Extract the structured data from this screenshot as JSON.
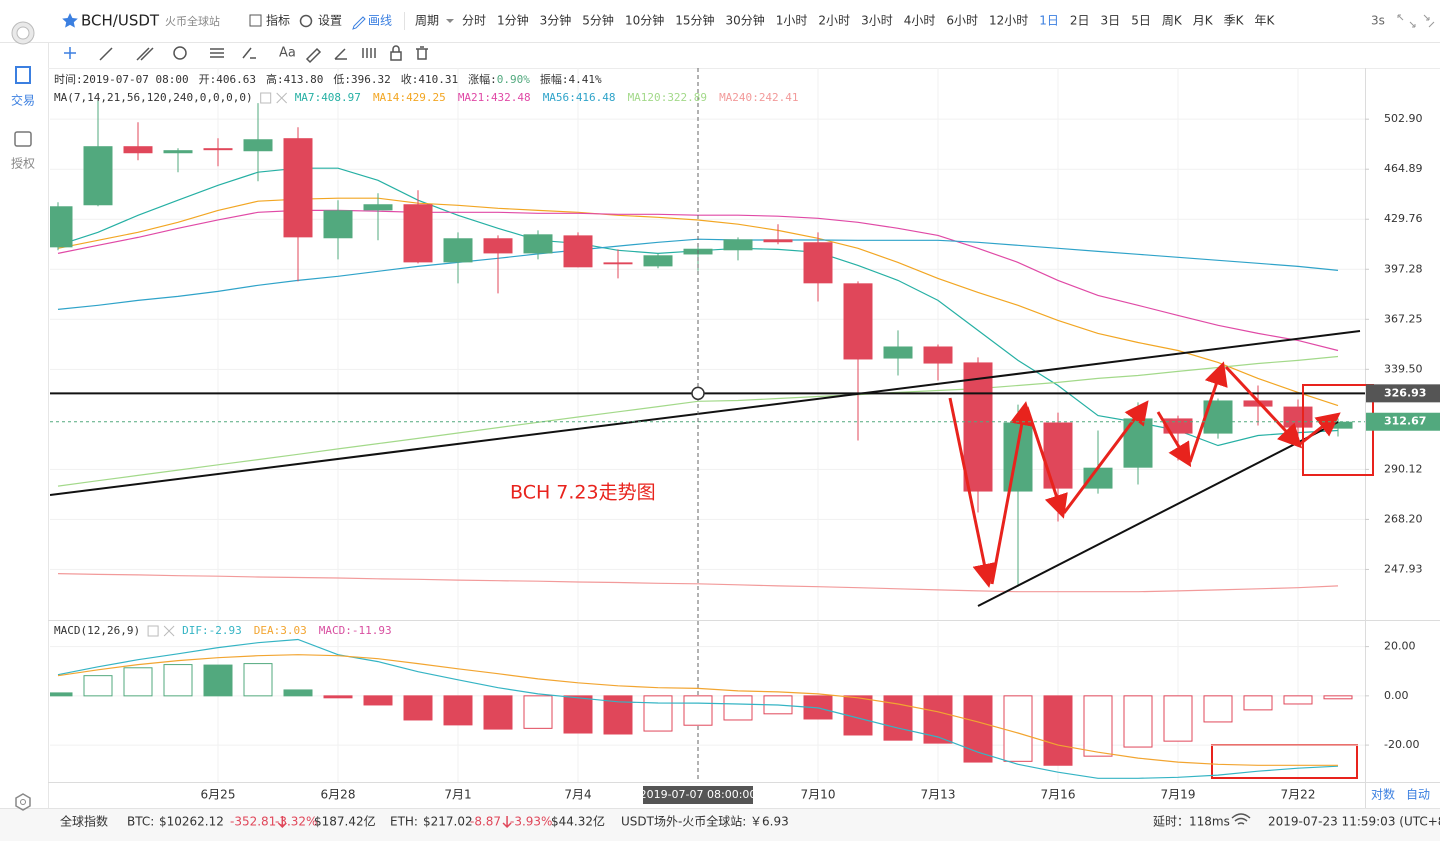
{
  "toolbar": {
    "symbol": "BCH/USDT",
    "exchange": "火币全球站",
    "buttons": [
      "指标",
      "设置",
      "画线"
    ],
    "period_label": "周期",
    "periods": [
      "分时",
      "1分钟",
      "3分钟",
      "5分钟",
      "10分钟",
      "15分钟",
      "30分钟",
      "1小时",
      "2小时",
      "3小时",
      "4小时",
      "6小时",
      "12小时",
      "1日",
      "2日",
      "3日",
      "5日",
      "周K",
      "月K",
      "季K",
      "年K"
    ],
    "active_period": "1日",
    "refresh": "3s",
    "text_tool": "Aa"
  },
  "sidebar": [
    "交易",
    "授权"
  ],
  "scale_buttons": [
    "对数",
    "自动"
  ],
  "status_bar": [
    {
      "text": "全球指数"
    },
    {
      "text": "BTC:"
    },
    {
      "text": "$10262.12"
    },
    {
      "text": "-352.81",
      "color": "#e0475a"
    },
    {
      "text": "-3.32%",
      "color": "#e0475a"
    },
    {
      "text": "$187.42亿"
    },
    {
      "text": "ETH:"
    },
    {
      "text": "$217.02"
    },
    {
      "text": "-8.87",
      "color": "#e0475a"
    },
    {
      "text": "-3.93%",
      "color": "#e0475a"
    },
    {
      "text": "$44.32亿"
    },
    {
      "text": "USDT场外-火币全球站:"
    },
    {
      "text": "￥6.93"
    },
    {
      "text": "延时：118ms"
    },
    {
      "text": "2019-07-23 11:59:03 (UTC+8)"
    }
  ],
  "chart_data": [
    {
      "type": "candlestick",
      "categories": [
        null,
        null,
        null,
        null,
        "6月25",
        null,
        null,
        "6月28",
        null,
        null,
        "7月1",
        null,
        null,
        "7月4",
        null,
        null,
        null,
        null,
        null,
        "7月10",
        null,
        null,
        "7月13",
        null,
        null,
        "7月16",
        null,
        null,
        "7月19",
        null,
        null,
        "7月22",
        null
      ],
      "open": [
        411.2,
        439.3,
        482.0,
        476.7,
        480.5,
        478.2,
        488.1,
        417.1,
        435.8,
        440.0,
        401.6,
        417.1,
        407.3,
        419.0,
        401.6,
        399.1,
        406.63,
        409.3,
        416.4,
        414.5,
        388.6,
        345.3,
        351.9,
        343.2,
        280.2,
        312.3,
        281.5,
        290.9,
        314.3,
        306.9,
        323.3,
        320.2,
        309.3
      ],
      "high": [
        441.4,
        518.1,
        500.5,
        480.5,
        488.1,
        515.7,
        496.6,
        442.8,
        447.7,
        449.8,
        421.0,
        419.0,
        422.3,
        421.0,
        409.9,
        407.3,
        413.8,
        417.7,
        426.4,
        421.0,
        389.8,
        360.9,
        353.0,
        345.9,
        321.2,
        317.2,
        308.4,
        322.3,
        315.7,
        324.3,
        331.0,
        323.8,
        314.3
      ],
      "low": [
        409.3,
        438.6,
        471.5,
        462.7,
        467.1,
        456.2,
        389.8,
        403.5,
        415.8,
        401.0,
        388.6,
        382.5,
        403.5,
        398.5,
        391.6,
        397.9,
        396.32,
        402.9,
        413.2,
        377.7,
        303.6,
        336.2,
        333.6,
        271.1,
        241.3,
        267.3,
        279.3,
        283.3,
        294.2,
        304.5,
        310.8,
        300.7,
        305.5
      ],
      "close": [
        438.6,
        482.0,
        476.7,
        479.0,
        479.0,
        487.3,
        417.7,
        435.8,
        440.0,
        401.6,
        417.1,
        407.3,
        419.7,
        398.5,
        400.4,
        406.1,
        410.31,
        416.4,
        414.5,
        388.6,
        344.8,
        351.9,
        342.6,
        280.2,
        312.3,
        281.5,
        290.9,
        314.3,
        306.9,
        323.3,
        320.2,
        309.8,
        312.67
      ],
      "up_color": "#52a97e",
      "down_color": "#e0475a",
      "log_scale": true,
      "grid": true,
      "ylim": [
        229,
        545
      ],
      "yticks": [
        {
          "value": 502.9,
          "label": "502.90"
        },
        464.89,
        429.76,
        397.28,
        367.25,
        {
          "value": 339.5,
          "label": "339.50"
        },
        290.12,
        {
          "value": 268.2,
          "label": "268.20"
        },
        247.93
      ],
      "indicator": "MA(7,14,21,56,120,240,0,0,0,0)",
      "separator": ":",
      "series": [
        {
          "name": "MA7",
          "color": "#26b0a4",
          "values": [
            412.5,
            421.0,
            432.4,
            442.8,
            453.3,
            462.7,
            465.6,
            465.6,
            456.9,
            442.8,
            432.4,
            423.7,
            415.8,
            413.8,
            409.3,
            407.3,
            408.97,
            410.6,
            409.9,
            408.0,
            399.7,
            390.4,
            378.3,
            360.9,
            344.3,
            331.0,
            315.7,
            312.3,
            308.4,
            301.2,
            306.0,
            307.4,
            308.4
          ]
        },
        {
          "name": "MA14",
          "color": "#f2a623",
          "values": [
            410.6,
            415.8,
            421.0,
            427.7,
            435.8,
            442.1,
            443.5,
            444.2,
            444.2,
            440.7,
            439.3,
            437.2,
            435.8,
            434.5,
            432.4,
            431.1,
            429.25,
            426.4,
            422.3,
            417.1,
            410.6,
            401.6,
            391.6,
            383.1,
            375.4,
            366.6,
            359.2,
            354.1,
            349.7,
            343.2,
            334.7,
            327.4,
            320.7
          ]
        },
        {
          "name": "MA21",
          "color": "#e04aa6",
          "values": [
            407.3,
            412.5,
            417.7,
            423.7,
            429.3,
            434.5,
            435.8,
            435.8,
            435.2,
            434.5,
            434.5,
            434.5,
            433.8,
            433.8,
            433.1,
            433.1,
            432.48,
            432.5,
            431.8,
            430.4,
            427.7,
            423.7,
            419.0,
            410.6,
            401.6,
            390.4,
            381.3,
            375.4,
            369.5,
            363.8,
            359.2,
            355.3,
            349.7
          ]
        },
        {
          "name": "MA56",
          "color": "#2fa3c9",
          "values": [
            373.0,
            375.4,
            378.3,
            380.7,
            383.7,
            387.4,
            390.4,
            392.9,
            396.0,
            399.1,
            401.6,
            404.2,
            407.0,
            409.5,
            412.0,
            414.5,
            416.48,
            416.0,
            416.0,
            416.0,
            415.8,
            415.8,
            415.8,
            414.5,
            412.5,
            410.6,
            408.6,
            406.7,
            404.8,
            402.9,
            401.0,
            399.1,
            396.6
          ]
        },
        {
          "name": "MA120",
          "color": "#a3d98a",
          "values": [
            282.6,
            285.0,
            287.4,
            289.8,
            292.2,
            294.6,
            297.1,
            299.6,
            302.1,
            304.6,
            307.2,
            309.8,
            312.4,
            315.0,
            317.6,
            320.2,
            322.89,
            323.3,
            324.3,
            325.3,
            326.3,
            327.4,
            328.4,
            329.4,
            331.0,
            332.6,
            334.7,
            336.2,
            338.4,
            340.5,
            342.6,
            344.3,
            346.4
          ]
        },
        {
          "name": "MA240",
          "color": "#f29a9a",
          "values": [
            246.3,
            246.0,
            245.8,
            245.5,
            245.3,
            245.0,
            244.8,
            244.6,
            244.3,
            244.1,
            243.8,
            243.6,
            243.4,
            243.1,
            242.9,
            242.6,
            242.41,
            242.03,
            241.6,
            241.3,
            240.9,
            240.5,
            240.1,
            239.7,
            239.4,
            239.4,
            239.4,
            239.4,
            239.7,
            240.1,
            240.5,
            240.9,
            241.6
          ]
        }
      ],
      "horizontal_line": 326.93,
      "crosshair_label": "2019-07-07 08:00:00",
      "annotation": "BCH 7.23走势图",
      "info": [
        {
          "label": "时间:",
          "value": "2019-07-07 08:00"
        },
        {
          "label": "开:",
          "value": "406.63"
        },
        {
          "label": "高:",
          "value": "413.80"
        },
        {
          "label": "低:",
          "value": "396.32"
        },
        {
          "label": "收:",
          "value": "410.31"
        },
        {
          "label": "涨幅:",
          "value": "0.90%",
          "color": "#52a97e"
        },
        {
          "label": "振幅:",
          "value": "4.41%"
        }
      ]
    },
    {
      "type": "macd",
      "indicator": "MACD(12,26,9)",
      "separator": ":",
      "histogram": {
        "name": "MACD",
        "color": "#d84fa0",
        "values": [
          1.2,
          8.2,
          11.4,
          12.7,
          12.5,
          13.1,
          2.4,
          -0.8,
          -3.7,
          -9.8,
          -11.8,
          -13.5,
          -13.2,
          -15.1,
          -15.5,
          -14.3,
          -11.93,
          -9.8,
          -7.3,
          -9.4,
          -15.9,
          -18.0,
          -19.2,
          -26.9,
          -26.6,
          -28.2,
          -24.5,
          -20.8,
          -18.4,
          -10.6,
          -5.7,
          -3.3,
          -1.2
        ]
      },
      "series": [
        {
          "name": "DIF",
          "color": "#35b4c4",
          "values": [
            8.6,
            11.8,
            14.7,
            17.1,
            19.6,
            21.6,
            22.9,
            16.7,
            13.9,
            9.8,
            6.5,
            3.3,
            0.8,
            -0.8,
            -2.4,
            -2.9,
            -2.93,
            -3.3,
            -3.7,
            -4.9,
            -9.0,
            -13.1,
            -16.7,
            -22.9,
            -27.8,
            -31.0,
            -33.5,
            -33.5,
            -33.1,
            -32.2,
            -30.6,
            -29.4,
            -28.6
          ]
        },
        {
          "name": "DEA",
          "color": "#f2a531",
          "values": [
            8.2,
            10.6,
            12.7,
            14.3,
            15.5,
            16.3,
            16.7,
            16.3,
            15.1,
            13.1,
            11.0,
            9.0,
            6.9,
            5.3,
            4.1,
            3.3,
            3.03,
            2.0,
            1.6,
            0.8,
            -0.8,
            -3.3,
            -6.5,
            -10.6,
            -15.1,
            -20.0,
            -22.9,
            -25.3,
            -26.9,
            -27.8,
            -28.2,
            -28.2,
            -28.2
          ]
        }
      ],
      "ylim": [
        -35,
        30
      ],
      "yticks": [
        {
          "value": 20,
          "label": "20.00"
        },
        {
          "value": 0,
          "label": "0.00"
        },
        {
          "value": -20,
          "label": "-20.00"
        }
      ]
    }
  ]
}
